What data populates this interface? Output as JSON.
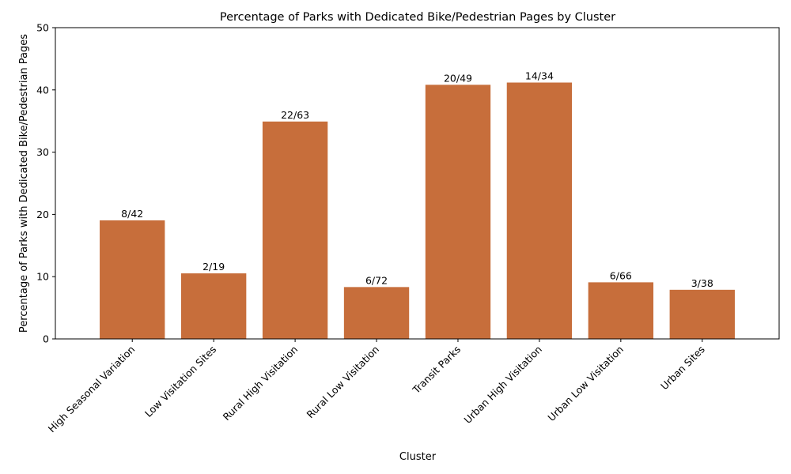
{
  "chart_data": {
    "type": "bar",
    "title": "Percentage of Parks with Dedicated Bike/Pedestrian Pages by Cluster",
    "xlabel": "Cluster",
    "ylabel": "Percentage of Parks with Dedicated Bike/Pedestrian Pages",
    "ylim": [
      0,
      50
    ],
    "yticks": [
      "0",
      "10",
      "20",
      "30",
      "40",
      "50"
    ],
    "grid": false,
    "bar_color": "#c76e3b",
    "categories": [
      "High Seasonal Variation",
      "Low Visitation Sites",
      "Rural High Visitation",
      "Rural Low Visitation",
      "Transit Parks",
      "Urban High Visitation",
      "Urban Low Visitation",
      "Urban Sites"
    ],
    "values": [
      19.05,
      10.53,
      34.92,
      8.33,
      40.82,
      41.18,
      9.09,
      7.89
    ],
    "bar_labels": [
      "8/42",
      "2/19",
      "22/63",
      "6/72",
      "20/49",
      "14/34",
      "6/66",
      "3/38"
    ]
  }
}
